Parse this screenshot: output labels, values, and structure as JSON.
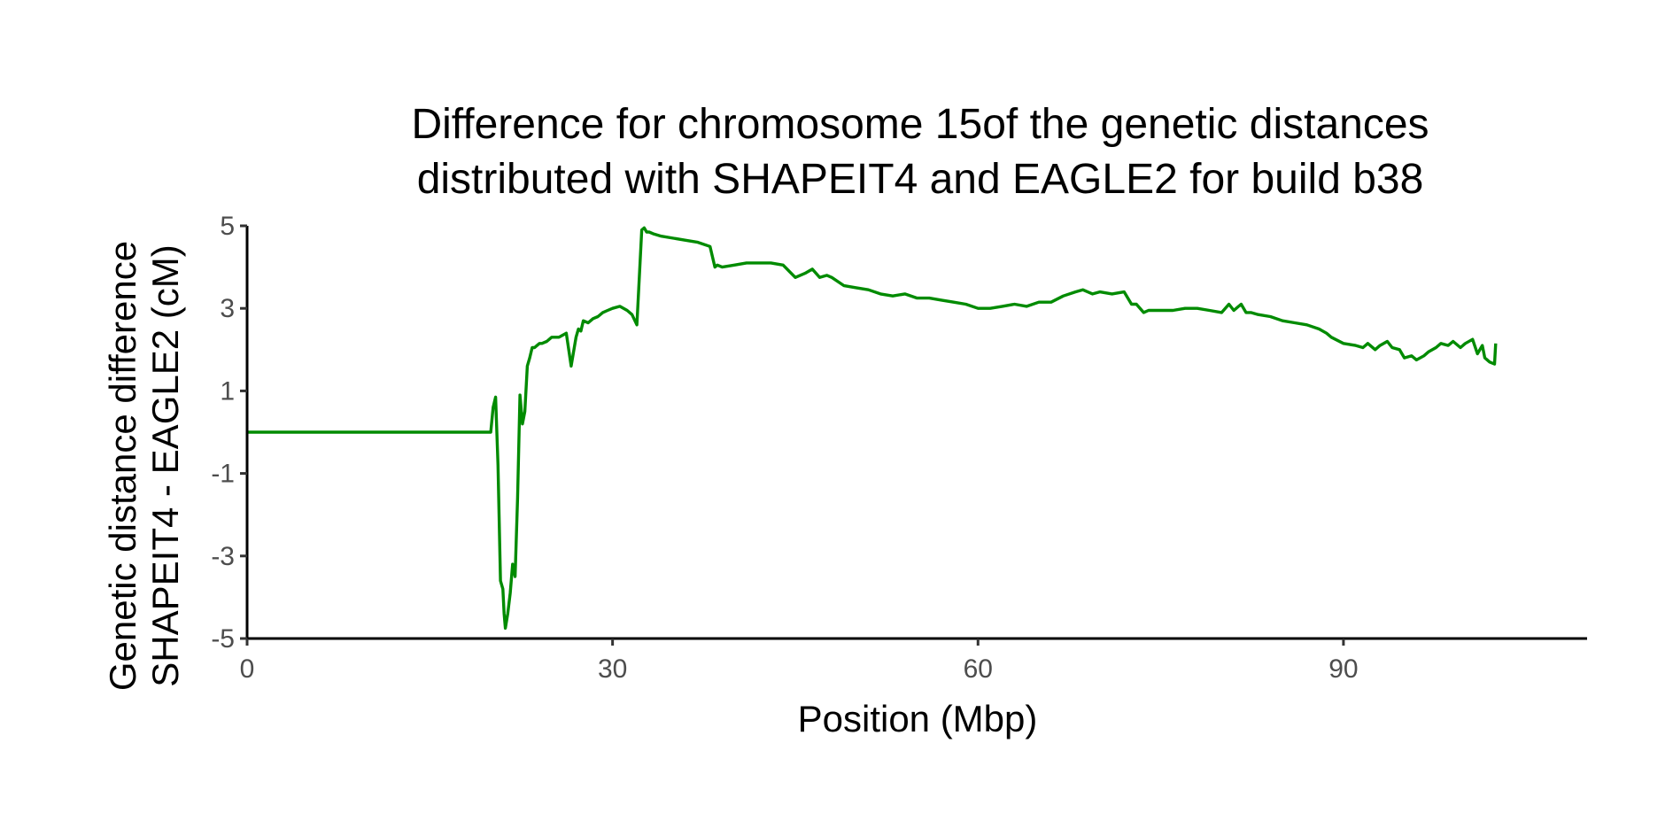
{
  "chart_data": {
    "type": "line",
    "title": [
      "Difference for chromosome 15of the genetic distances",
      "distributed with SHAPEIT4 and EAGLE2 for build b38"
    ],
    "xlabel": "Position (Mbp)",
    "ylabel": [
      "Genetic distance difference",
      "SHAPEIT4 - EAGLE2 (cM)"
    ],
    "xlim": [
      0,
      110
    ],
    "ylim": [
      -5,
      5
    ],
    "xticks": [
      0,
      30,
      60,
      90
    ],
    "xtick_labels": [
      "0",
      "30",
      "60",
      "90"
    ],
    "yticks": [
      -5,
      -3,
      -1,
      1,
      3,
      5
    ],
    "ytick_labels": [
      "-5",
      "-3",
      "-1",
      "1",
      "3",
      "5"
    ],
    "grid": false,
    "legend": "none",
    "color": "#008B00",
    "series": [
      {
        "x": [
          0,
          20.0,
          20.2,
          20.4,
          20.6,
          20.8,
          21.0,
          21.1,
          21.2,
          21.4,
          21.6,
          21.8,
          22.0,
          22.2,
          22.4,
          22.6,
          22.8,
          23.0,
          23.2,
          23.4,
          23.6,
          23.8,
          24.0,
          24.2,
          24.6,
          25.0,
          25.6,
          26.2,
          26.6,
          27.0,
          27.2,
          27.4,
          27.6,
          28.0,
          28.4,
          28.8,
          29.2,
          29.6,
          30.0,
          30.6,
          31.2,
          31.6,
          32.0,
          32.4,
          32.6,
          32.8,
          33.0,
          33.4,
          34.0,
          35.0,
          36.0,
          37.0,
          38.0,
          38.4,
          38.6,
          39.0,
          40.0,
          41.0,
          42.0,
          43.0,
          44.0,
          45.0,
          45.8,
          46.4,
          47.0,
          47.6,
          48.0,
          49.0,
          50.0,
          51.0,
          52.0,
          53.0,
          54.0,
          55.0,
          56.0,
          57.0,
          58.0,
          59.0,
          60.0,
          61.0,
          62.0,
          63.0,
          64.0,
          65.0,
          66.0,
          67.0,
          68.0,
          68.6,
          69.4,
          70.0,
          71.0,
          72.0,
          72.6,
          73.0,
          73.6,
          74.0,
          75.0,
          76.0,
          77.0,
          78.0,
          79.0,
          80.0,
          80.6,
          81.0,
          81.6,
          82.0,
          82.4,
          83.0,
          84.0,
          85.0,
          86.0,
          87.0,
          88.0,
          88.6,
          89.0,
          90.0,
          91.0,
          91.6,
          92.0,
          92.6,
          93.0,
          93.6,
          94.0,
          94.6,
          95.0,
          95.6,
          96.0,
          96.6,
          97.0,
          97.6,
          98.0,
          98.6,
          99.0,
          99.6,
          100.0,
          100.6,
          101.0,
          101.4,
          101.6,
          102.0,
          102.4,
          102.5
        ],
        "y": [
          0,
          0,
          0.6,
          0.85,
          -0.8,
          -3.6,
          -3.8,
          -4.4,
          -4.75,
          -4.4,
          -3.9,
          -3.2,
          -3.5,
          -1.6,
          0.9,
          0.2,
          0.5,
          1.6,
          1.8,
          2.05,
          2.05,
          2.1,
          2.15,
          2.15,
          2.2,
          2.3,
          2.3,
          2.4,
          1.6,
          2.3,
          2.5,
          2.45,
          2.7,
          2.65,
          2.75,
          2.8,
          2.9,
          2.95,
          3.0,
          3.05,
          2.95,
          2.85,
          2.6,
          4.9,
          4.95,
          4.85,
          4.85,
          4.8,
          4.75,
          4.7,
          4.65,
          4.6,
          4.5,
          4.0,
          4.05,
          4.0,
          4.05,
          4.1,
          4.1,
          4.1,
          4.05,
          3.75,
          3.85,
          3.95,
          3.75,
          3.8,
          3.75,
          3.55,
          3.5,
          3.45,
          3.35,
          3.3,
          3.35,
          3.25,
          3.25,
          3.2,
          3.15,
          3.1,
          3.0,
          3.0,
          3.05,
          3.1,
          3.05,
          3.15,
          3.15,
          3.3,
          3.4,
          3.45,
          3.35,
          3.4,
          3.35,
          3.4,
          3.1,
          3.1,
          2.9,
          2.95,
          2.95,
          2.95,
          3.0,
          3.0,
          2.95,
          2.9,
          3.1,
          2.95,
          3.1,
          2.9,
          2.9,
          2.85,
          2.8,
          2.7,
          2.65,
          2.6,
          2.5,
          2.4,
          2.3,
          2.15,
          2.1,
          2.05,
          2.15,
          2.0,
          2.1,
          2.2,
          2.05,
          2.0,
          1.8,
          1.85,
          1.75,
          1.85,
          1.95,
          2.05,
          2.15,
          2.1,
          2.2,
          2.05,
          2.15,
          2.25,
          1.9,
          2.1,
          1.8,
          1.7,
          1.65,
          2.15
        ]
      }
    ]
  }
}
